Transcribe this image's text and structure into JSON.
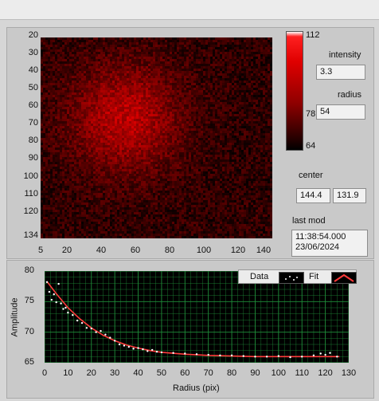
{
  "colorbar": {
    "max": "112",
    "mid": "78",
    "min": "64"
  },
  "intensity": {
    "label": "intensity",
    "value": "3.3"
  },
  "radius": {
    "label": "radius",
    "value": "54"
  },
  "center": {
    "label": "center",
    "x": "144.4",
    "y": "131.9"
  },
  "last_mod": {
    "label": "last mod",
    "time": "11:38:54.000",
    "date": "23/06/2024"
  },
  "image_axes": {
    "y_ticks": [
      "20",
      "30",
      "40",
      "50",
      "60",
      "70",
      "80",
      "90",
      "100",
      "110",
      "120",
      "134"
    ],
    "x_ticks": [
      "5",
      "20",
      "40",
      "60",
      "80",
      "100",
      "120",
      "140"
    ]
  },
  "legend": {
    "data_label": "Data",
    "fit_label": "Fit"
  },
  "colors": {
    "fit": "#ff3b3b",
    "data": "#ffffff",
    "grid": "#1f8f3a",
    "heat": "#ff0000"
  },
  "chart_data": {
    "type": "scatter",
    "xlabel": "Radius (pix)",
    "ylabel": "Amplitude",
    "xlim": [
      0,
      130
    ],
    "ylim": [
      65,
      80
    ],
    "x_ticks": [
      "0",
      "10",
      "20",
      "30",
      "40",
      "50",
      "60",
      "70",
      "80",
      "90",
      "100",
      "110",
      "120",
      "130"
    ],
    "y_ticks": [
      "80",
      "75",
      "70",
      "65"
    ],
    "grid": true,
    "legend_position": "top-right",
    "series": [
      {
        "name": "Data",
        "x": [
          1,
          2,
          3,
          4,
          5,
          6,
          7,
          8,
          9,
          10,
          12,
          14,
          16,
          18,
          20,
          22,
          24,
          26,
          28,
          30,
          32,
          34,
          36,
          38,
          40,
          42,
          44,
          46,
          48,
          50,
          55,
          60,
          65,
          70,
          75,
          80,
          85,
          90,
          95,
          100,
          105,
          110,
          115,
          118,
          120,
          122,
          125
        ],
        "y": [
          78.2,
          76.6,
          75.3,
          76.2,
          74.9,
          77.9,
          74.7,
          73.8,
          74.0,
          73.2,
          72.8,
          71.9,
          71.5,
          70.7,
          70.6,
          70.0,
          70.2,
          69.6,
          69.1,
          68.6,
          68.0,
          67.8,
          67.6,
          67.3,
          67.4,
          67.2,
          66.9,
          67.1,
          66.8,
          66.7,
          66.6,
          66.5,
          66.4,
          66.3,
          66.2,
          66.2,
          66.1,
          66.0,
          66.0,
          66.1,
          65.9,
          66.0,
          66.2,
          66.5,
          66.3,
          66.6,
          66.0
        ]
      },
      {
        "name": "Fit",
        "x": [
          1,
          5,
          10,
          15,
          20,
          25,
          30,
          35,
          40,
          45,
          50,
          60,
          70,
          80,
          90,
          100,
          110,
          120,
          126
        ],
        "y": [
          78.3,
          76.3,
          74.0,
          72.2,
          70.7,
          69.5,
          68.6,
          67.9,
          67.4,
          67.0,
          66.7,
          66.4,
          66.2,
          66.1,
          66.0,
          66.0,
          66.0,
          66.0,
          66.0
        ]
      }
    ]
  }
}
